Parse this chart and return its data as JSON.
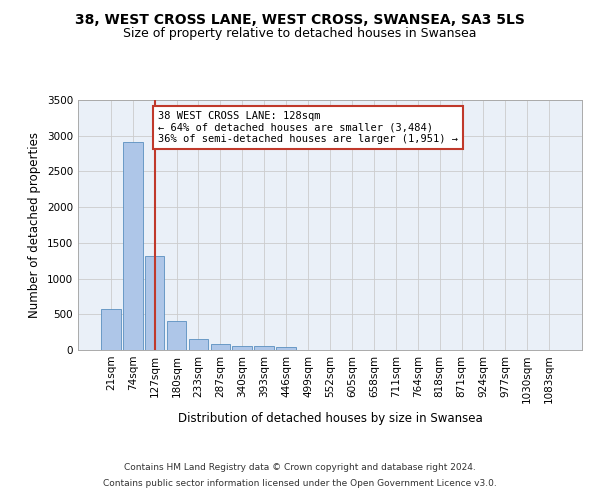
{
  "title_line1": "38, WEST CROSS LANE, WEST CROSS, SWANSEA, SA3 5LS",
  "title_line2": "Size of property relative to detached houses in Swansea",
  "xlabel": "Distribution of detached houses by size in Swansea",
  "ylabel": "Number of detached properties",
  "categories": [
    "21sqm",
    "74sqm",
    "127sqm",
    "180sqm",
    "233sqm",
    "287sqm",
    "340sqm",
    "393sqm",
    "446sqm",
    "499sqm",
    "552sqm",
    "605sqm",
    "658sqm",
    "711sqm",
    "764sqm",
    "818sqm",
    "871sqm",
    "924sqm",
    "977sqm",
    "1030sqm",
    "1083sqm"
  ],
  "values": [
    570,
    2910,
    1310,
    410,
    155,
    85,
    60,
    50,
    45,
    0,
    0,
    0,
    0,
    0,
    0,
    0,
    0,
    0,
    0,
    0,
    0
  ],
  "bar_color": "#aec6e8",
  "bar_edge_color": "#5a8fc0",
  "highlight_bar_index": 2,
  "highlight_color": "#c0392b",
  "annotation_line1": "38 WEST CROSS LANE: 128sqm",
  "annotation_line2": "← 64% of detached houses are smaller (3,484)",
  "annotation_line3": "36% of semi-detached houses are larger (1,951) →",
  "annotation_box_color": "#c0392b",
  "ylim": [
    0,
    3500
  ],
  "yticks": [
    0,
    500,
    1000,
    1500,
    2000,
    2500,
    3000,
    3500
  ],
  "grid_color": "#cccccc",
  "bg_color": "#eaf0f8",
  "footer_line1": "Contains HM Land Registry data © Crown copyright and database right 2024.",
  "footer_line2": "Contains public sector information licensed under the Open Government Licence v3.0.",
  "title_fontsize": 10,
  "subtitle_fontsize": 9,
  "axis_label_fontsize": 8.5,
  "tick_fontsize": 7.5,
  "annotation_fontsize": 7.5,
  "footer_fontsize": 6.5
}
